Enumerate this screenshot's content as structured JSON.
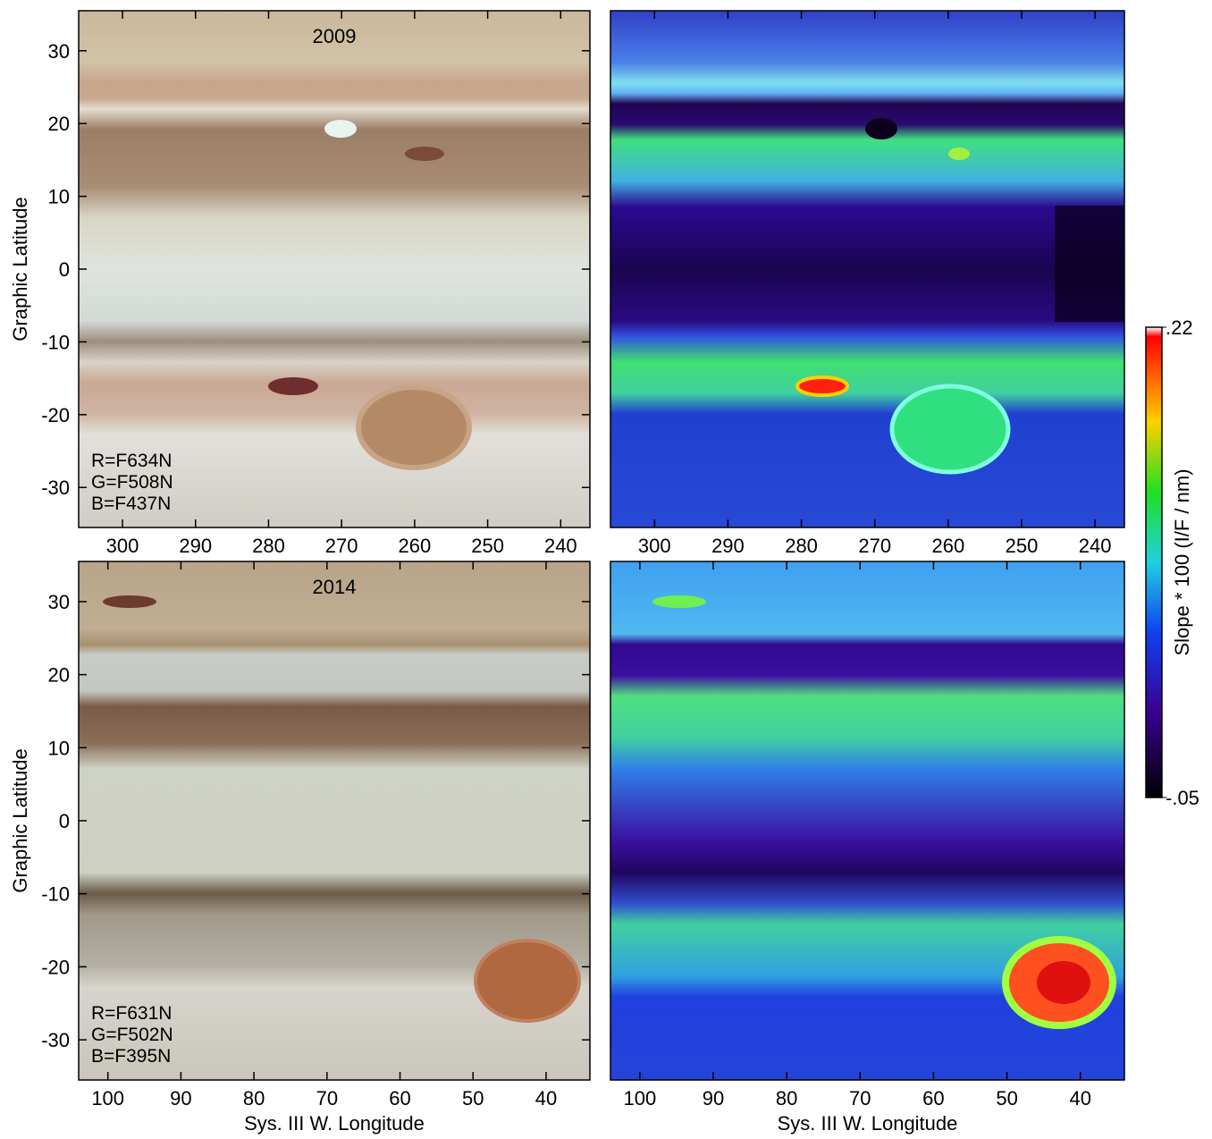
{
  "chart_data": [
    {
      "type": "image",
      "title": "2009",
      "annotations": [
        "R=F634N",
        "G=F508N",
        "B=F437N"
      ],
      "xlim": [
        306,
        236
      ],
      "ylim": [
        -35.5,
        35.5
      ],
      "xticks": [
        300,
        290,
        280,
        270,
        260,
        250,
        240
      ],
      "yticks": [
        30,
        20,
        10,
        0,
        -10,
        -20,
        -30
      ],
      "ylabel": "Graphic Latitude"
    },
    {
      "type": "image",
      "xlim": [
        306,
        236
      ],
      "ylim": [
        -35.5,
        35.5
      ],
      "xticks": [
        300,
        290,
        280,
        270,
        260,
        250,
        240
      ]
    },
    {
      "type": "image",
      "title": "2014",
      "annotations": [
        "R=F631N",
        "G=F502N",
        "B=F395N"
      ],
      "xlim": [
        104,
        34
      ],
      "ylim": [
        -35.5,
        35.5
      ],
      "xticks": [
        100,
        90,
        80,
        70,
        60,
        50,
        40
      ],
      "yticks": [
        30,
        20,
        10,
        0,
        -10,
        -20,
        -30
      ],
      "ylabel": "Graphic Latitude",
      "xlabel": "Sys. III W. Longitude"
    },
    {
      "type": "image",
      "xlim": [
        104,
        34
      ],
      "ylim": [
        -35.5,
        35.5
      ],
      "xticks": [
        100,
        90,
        80,
        70,
        60,
        50,
        40
      ],
      "xlabel": "Sys. III W. Longitude"
    }
  ],
  "colorbar": {
    "label": "Slope * 100 (I/F / nm)",
    "lim": [
      -0.05,
      0.22
    ],
    "ticks": [
      {
        "value": 0.22,
        "label": ".22"
      },
      {
        "value": -0.05,
        "label": "-.05"
      }
    ]
  }
}
